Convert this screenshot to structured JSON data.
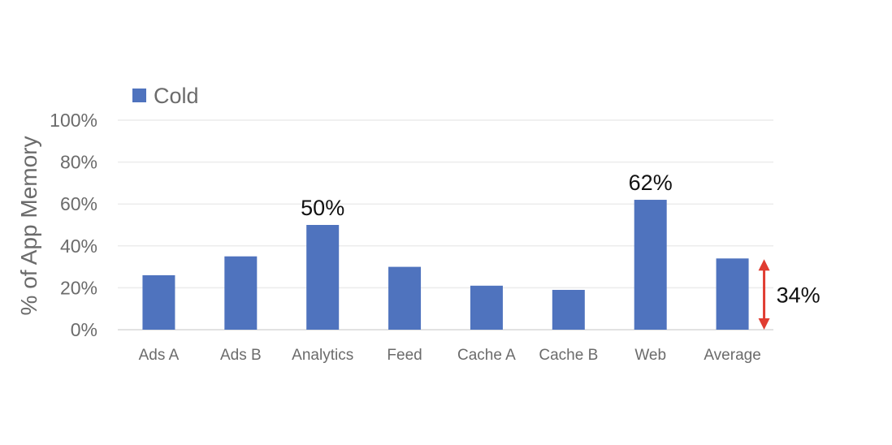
{
  "chart_data": {
    "type": "bar",
    "title": "",
    "xlabel": "",
    "ylabel": "% of App Memory",
    "ylim": [
      0,
      100
    ],
    "yticks": [
      "0%",
      "20%",
      "40%",
      "60%",
      "80%",
      "100%"
    ],
    "grid": true,
    "legend": {
      "position": "top-left",
      "entries": [
        "Cold"
      ]
    },
    "categories": [
      "Ads A",
      "Ads B",
      "Analytics",
      "Feed",
      "Cache A",
      "Cache B",
      "Web",
      "Average"
    ],
    "series": [
      {
        "name": "Cold",
        "color": "#4f73be",
        "values": [
          26,
          35,
          50,
          30,
          21,
          19,
          62,
          34
        ]
      }
    ],
    "data_labels": [
      {
        "category": "Analytics",
        "text": "50%"
      },
      {
        "category": "Web",
        "text": "62%"
      }
    ],
    "annotation": {
      "category": "Average",
      "text": "34%",
      "arrow_color": "#e03c31"
    }
  }
}
